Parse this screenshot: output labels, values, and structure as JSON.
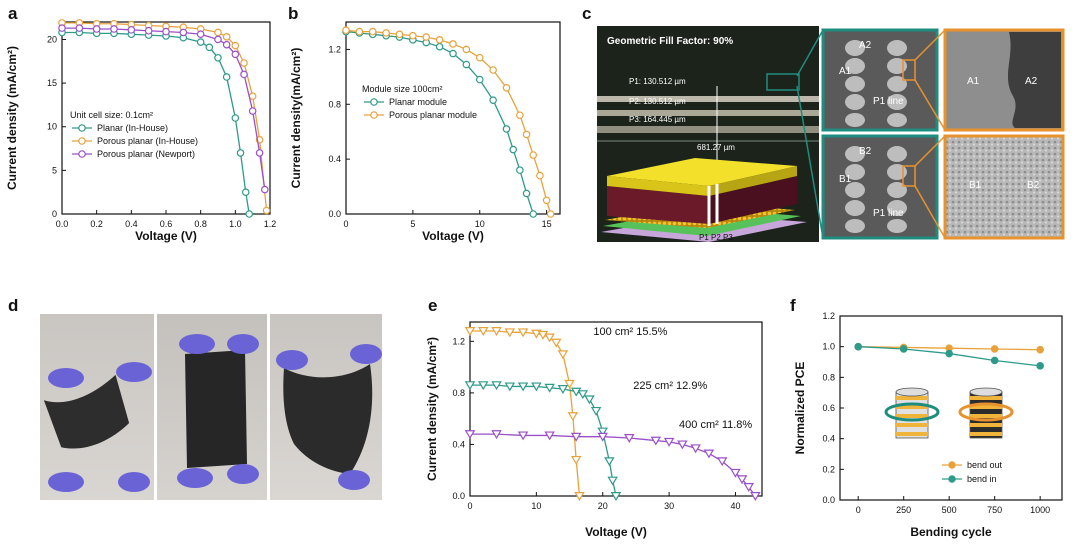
{
  "panels": {
    "a": "a",
    "b": "b",
    "c": "c",
    "d": "d",
    "e": "e",
    "f": "f"
  },
  "colors": {
    "teal": "#2e9a8a",
    "orange": "#e9a23b",
    "purple": "#9b4fc9",
    "magenta": "#c7346f",
    "panel_c_teal": "#1f8c80",
    "panel_c_orange": "#e8922e"
  },
  "chart_data": [
    {
      "id": "a",
      "type": "line",
      "xlabel": "Voltage (V)",
      "ylabel": "Current density (mA/cm²)",
      "xlim": [
        0.0,
        1.2
      ],
      "ylim": [
        0,
        22
      ],
      "xticks": [
        "0.0",
        "0.2",
        "0.4",
        "0.6",
        "0.8",
        "1.0",
        "1.2"
      ],
      "xtick_values": [
        0,
        0.2,
        0.4,
        0.6,
        0.8,
        1.0,
        1.2
      ],
      "yticks": [
        "0",
        "5",
        "10",
        "15",
        "20"
      ],
      "ytick_values": [
        0,
        5,
        10,
        15,
        20
      ],
      "legend_title": "Unit cell size: 0.1cm²",
      "series": [
        {
          "name": "Planar (In-House)",
          "color": "#2e9a8a",
          "marker": "circle",
          "x": [
            0,
            0.1,
            0.2,
            0.3,
            0.4,
            0.5,
            0.6,
            0.7,
            0.8,
            0.85,
            0.9,
            0.95,
            1.0,
            1.03,
            1.06,
            1.08
          ],
          "y": [
            20.8,
            20.8,
            20.7,
            20.7,
            20.6,
            20.5,
            20.4,
            20.2,
            19.7,
            19.1,
            17.9,
            15.7,
            11.0,
            7.0,
            2.5,
            0
          ]
        },
        {
          "name": "Porous planar (In-House)",
          "color": "#e9a23b",
          "marker": "circle",
          "x": [
            0,
            0.1,
            0.2,
            0.3,
            0.4,
            0.5,
            0.6,
            0.7,
            0.8,
            0.9,
            0.95,
            1.0,
            1.05,
            1.1,
            1.14,
            1.18
          ],
          "y": [
            21.9,
            21.9,
            21.8,
            21.8,
            21.7,
            21.6,
            21.5,
            21.4,
            21.2,
            20.8,
            20.3,
            19.3,
            17.3,
            13.5,
            8.5,
            0.4
          ]
        },
        {
          "name": "Porous planar (Newport)",
          "color": "#9b4fc9",
          "marker": "circle",
          "x": [
            0,
            0.1,
            0.2,
            0.3,
            0.4,
            0.5,
            0.6,
            0.7,
            0.8,
            0.9,
            0.95,
            1.0,
            1.05,
            1.1,
            1.14,
            1.17
          ],
          "y": [
            21.3,
            21.3,
            21.2,
            21.2,
            21.1,
            21.0,
            20.9,
            20.8,
            20.6,
            20.0,
            19.4,
            18.3,
            16.0,
            11.8,
            7.0,
            2.8
          ]
        }
      ]
    },
    {
      "id": "b",
      "type": "line",
      "xlabel": "Voltage (V)",
      "ylabel": "Current density(mA/cm²)",
      "xlim": [
        0,
        16
      ],
      "ylim": [
        0,
        1.4
      ],
      "xticks": [
        "0",
        "5",
        "10",
        "15"
      ],
      "xtick_values": [
        0,
        5,
        10,
        15
      ],
      "yticks": [
        "0.0",
        "0.4",
        "0.8",
        "1.2"
      ],
      "ytick_values": [
        0,
        0.4,
        0.8,
        1.2
      ],
      "legend_title": "Module size 100cm²",
      "series": [
        {
          "name": "Planar module",
          "color": "#2e9a8a",
          "marker": "circle",
          "x": [
            0,
            1,
            2,
            3,
            4,
            5,
            6,
            7,
            8,
            9,
            10,
            11,
            12,
            12.5,
            13,
            13.5,
            14
          ],
          "y": [
            1.33,
            1.32,
            1.31,
            1.3,
            1.29,
            1.27,
            1.25,
            1.22,
            1.17,
            1.09,
            0.98,
            0.83,
            0.62,
            0.47,
            0.32,
            0.15,
            0.0
          ]
        },
        {
          "name": "Porous planar module",
          "color": "#e9a23b",
          "marker": "circle",
          "x": [
            0,
            1,
            2,
            3,
            4,
            5,
            6,
            7,
            8,
            9,
            10,
            11,
            12,
            13,
            13.5,
            14,
            14.5,
            15,
            15.3
          ],
          "y": [
            1.34,
            1.33,
            1.33,
            1.32,
            1.31,
            1.3,
            1.29,
            1.27,
            1.24,
            1.2,
            1.14,
            1.05,
            0.92,
            0.72,
            0.58,
            0.43,
            0.28,
            0.1,
            0.0
          ]
        }
      ]
    },
    {
      "id": "e",
      "type": "line",
      "xlabel": "Voltage (V)",
      "ylabel": "Current density (mA/cm²)",
      "xlim": [
        0,
        44
      ],
      "ylim": [
        0,
        1.35
      ],
      "xticks": [
        "0",
        "10",
        "20",
        "30",
        "40"
      ],
      "xtick_values": [
        0,
        10,
        20,
        30,
        40
      ],
      "yticks": [
        "0.0",
        "0.4",
        "0.8",
        "1.2"
      ],
      "ytick_values": [
        0,
        0.4,
        0.8,
        1.2
      ],
      "series": [
        {
          "name": "100 cm²",
          "color": "#e9a23b",
          "marker": "triangle-down",
          "x": [
            0,
            2,
            4,
            6,
            8,
            10,
            11,
            12,
            13,
            14,
            15,
            15.5,
            16,
            16.5
          ],
          "y": [
            1.28,
            1.28,
            1.28,
            1.27,
            1.27,
            1.26,
            1.25,
            1.23,
            1.19,
            1.1,
            0.87,
            0.62,
            0.28,
            0.0
          ]
        },
        {
          "name": "225 cm²",
          "color": "#2e9a8a",
          "marker": "triangle-down",
          "x": [
            0,
            2,
            4,
            6,
            8,
            10,
            12,
            14,
            16,
            17,
            18,
            19,
            20,
            21,
            21.5,
            22
          ],
          "y": [
            0.86,
            0.86,
            0.86,
            0.85,
            0.85,
            0.85,
            0.84,
            0.83,
            0.81,
            0.79,
            0.75,
            0.66,
            0.5,
            0.27,
            0.12,
            0.0
          ]
        },
        {
          "name": "400 cm²",
          "color": "#9b4fc9",
          "marker": "triangle-down",
          "x": [
            0,
            4,
            8,
            12,
            16,
            20,
            24,
            28,
            30,
            32,
            34,
            36,
            38,
            40,
            41,
            42,
            43
          ],
          "y": [
            0.48,
            0.48,
            0.47,
            0.47,
            0.46,
            0.46,
            0.45,
            0.43,
            0.42,
            0.4,
            0.37,
            0.33,
            0.27,
            0.18,
            0.13,
            0.07,
            0.0
          ]
        }
      ],
      "annotations": [
        {
          "text": "100 cm² 15.5%",
          "x": 18.6,
          "y": 1.28
        },
        {
          "text": "225 cm² 12.9%",
          "x": 24.6,
          "y": 0.86
        },
        {
          "text": "400 cm² 11.8%",
          "x": 31.5,
          "y": 0.56
        }
      ]
    },
    {
      "id": "f",
      "type": "line",
      "xlabel": "Bending cycle",
      "ylabel": "Normalized PCE",
      "xlim": [
        -100,
        1120
      ],
      "ylim": [
        0,
        1.2
      ],
      "xticks": [
        "0",
        "250",
        "500",
        "750",
        "1000"
      ],
      "xtick_values": [
        0,
        250,
        500,
        750,
        1000
      ],
      "yticks": [
        "0.0",
        "0.2",
        "0.4",
        "0.6",
        "0.8",
        "1.0",
        "1.2"
      ],
      "ytick_values": [
        0,
        0.2,
        0.4,
        0.6,
        0.8,
        1.0,
        1.2
      ],
      "legend_placement": "bottom-right",
      "series": [
        {
          "name": "bend out",
          "color": "#e9a23b",
          "marker": "circle",
          "x": [
            0,
            250,
            500,
            750,
            1000
          ],
          "y": [
            1.0,
            0.995,
            0.99,
            0.985,
            0.98
          ]
        },
        {
          "name": "bend in",
          "color": "#2e9a8a",
          "marker": "circle",
          "x": [
            0,
            250,
            500,
            750,
            1000
          ],
          "y": [
            1.0,
            0.985,
            0.955,
            0.91,
            0.875
          ]
        }
      ]
    }
  ],
  "panel_c": {
    "title": "Geometric Fill Factor: 90%",
    "p1": "P1: 130.512 µm",
    "p2": "P2: 130.512 µm",
    "p3": "P3: 164.445 µm",
    "width": "681.27 µm",
    "stack_label": "P1 P2 P3",
    "a1": "A1",
    "a2": "A2",
    "p1_line_a": "P1 line",
    "b1": "B1",
    "b2": "B2",
    "p1_line_b": "P1 line",
    "a1z": "A1",
    "a2z": "A2",
    "b1z": "B1",
    "b2z": "B2"
  }
}
